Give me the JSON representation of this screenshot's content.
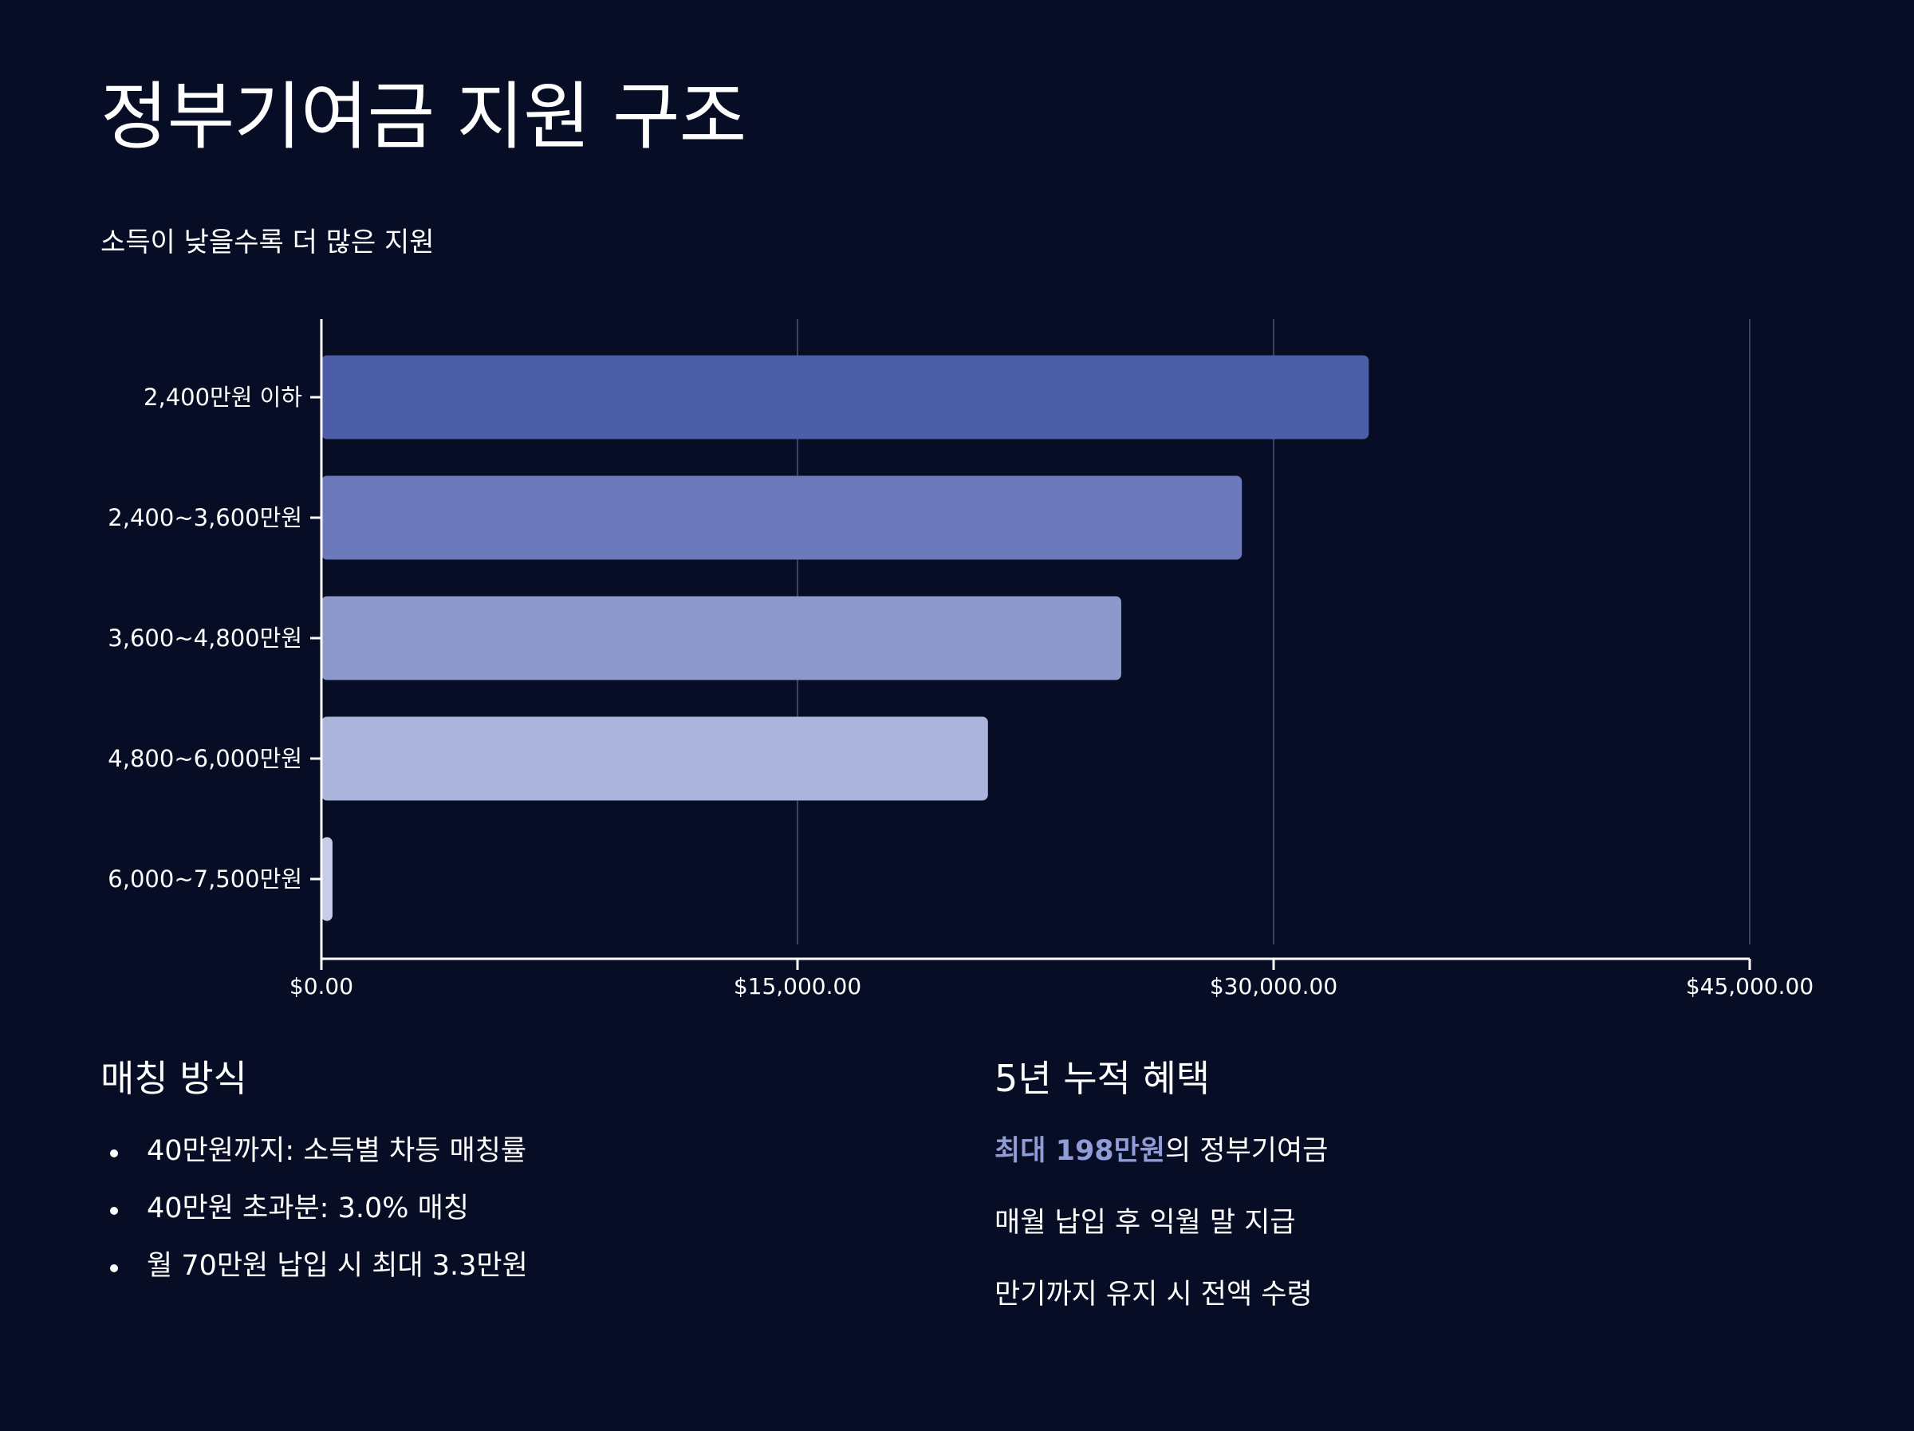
{
  "page": {
    "title": "정부기여금 지원 구조",
    "subtitle": "소득이 낮을수록 더 많은 지원"
  },
  "chart_data": {
    "type": "bar",
    "orientation": "horizontal",
    "categories": [
      "2,400만원 이하",
      "2,400~3,600만원",
      "3,600~4,800만원",
      "4,800~6,000만원",
      "6,000~7,500만원"
    ],
    "values": [
      33000,
      29000,
      25200,
      21000,
      350
    ],
    "xlim": [
      0,
      45000
    ],
    "xticks": [
      0,
      15000,
      30000,
      45000
    ],
    "xtick_labels": [
      "$0.00",
      "$15,000.00",
      "$30,000.00",
      "$45,000.00"
    ],
    "grid": "vertical",
    "colors": [
      "#4c5ea8",
      "#6c7abb",
      "#8d99cb",
      "#abb4db",
      "#c7cde8"
    ]
  },
  "matching": {
    "heading": "매칭 방식",
    "items": [
      "40만원까지: 소득별 차등 매칭률",
      "40만원 초과분: 3.0% 매칭",
      "월 70만원 납입 시 최대 3.3만원"
    ]
  },
  "benefits": {
    "heading": "5년 누적 혜택",
    "highlight": "최대 198만원",
    "line1_rest": "의 정부기여금",
    "line2": "매월 납입 후 익월 말 지급",
    "line3": "만기까지 유지 시 전액 수령"
  },
  "colors": {
    "background": "#080d26",
    "accent": "#8f9cd6"
  }
}
